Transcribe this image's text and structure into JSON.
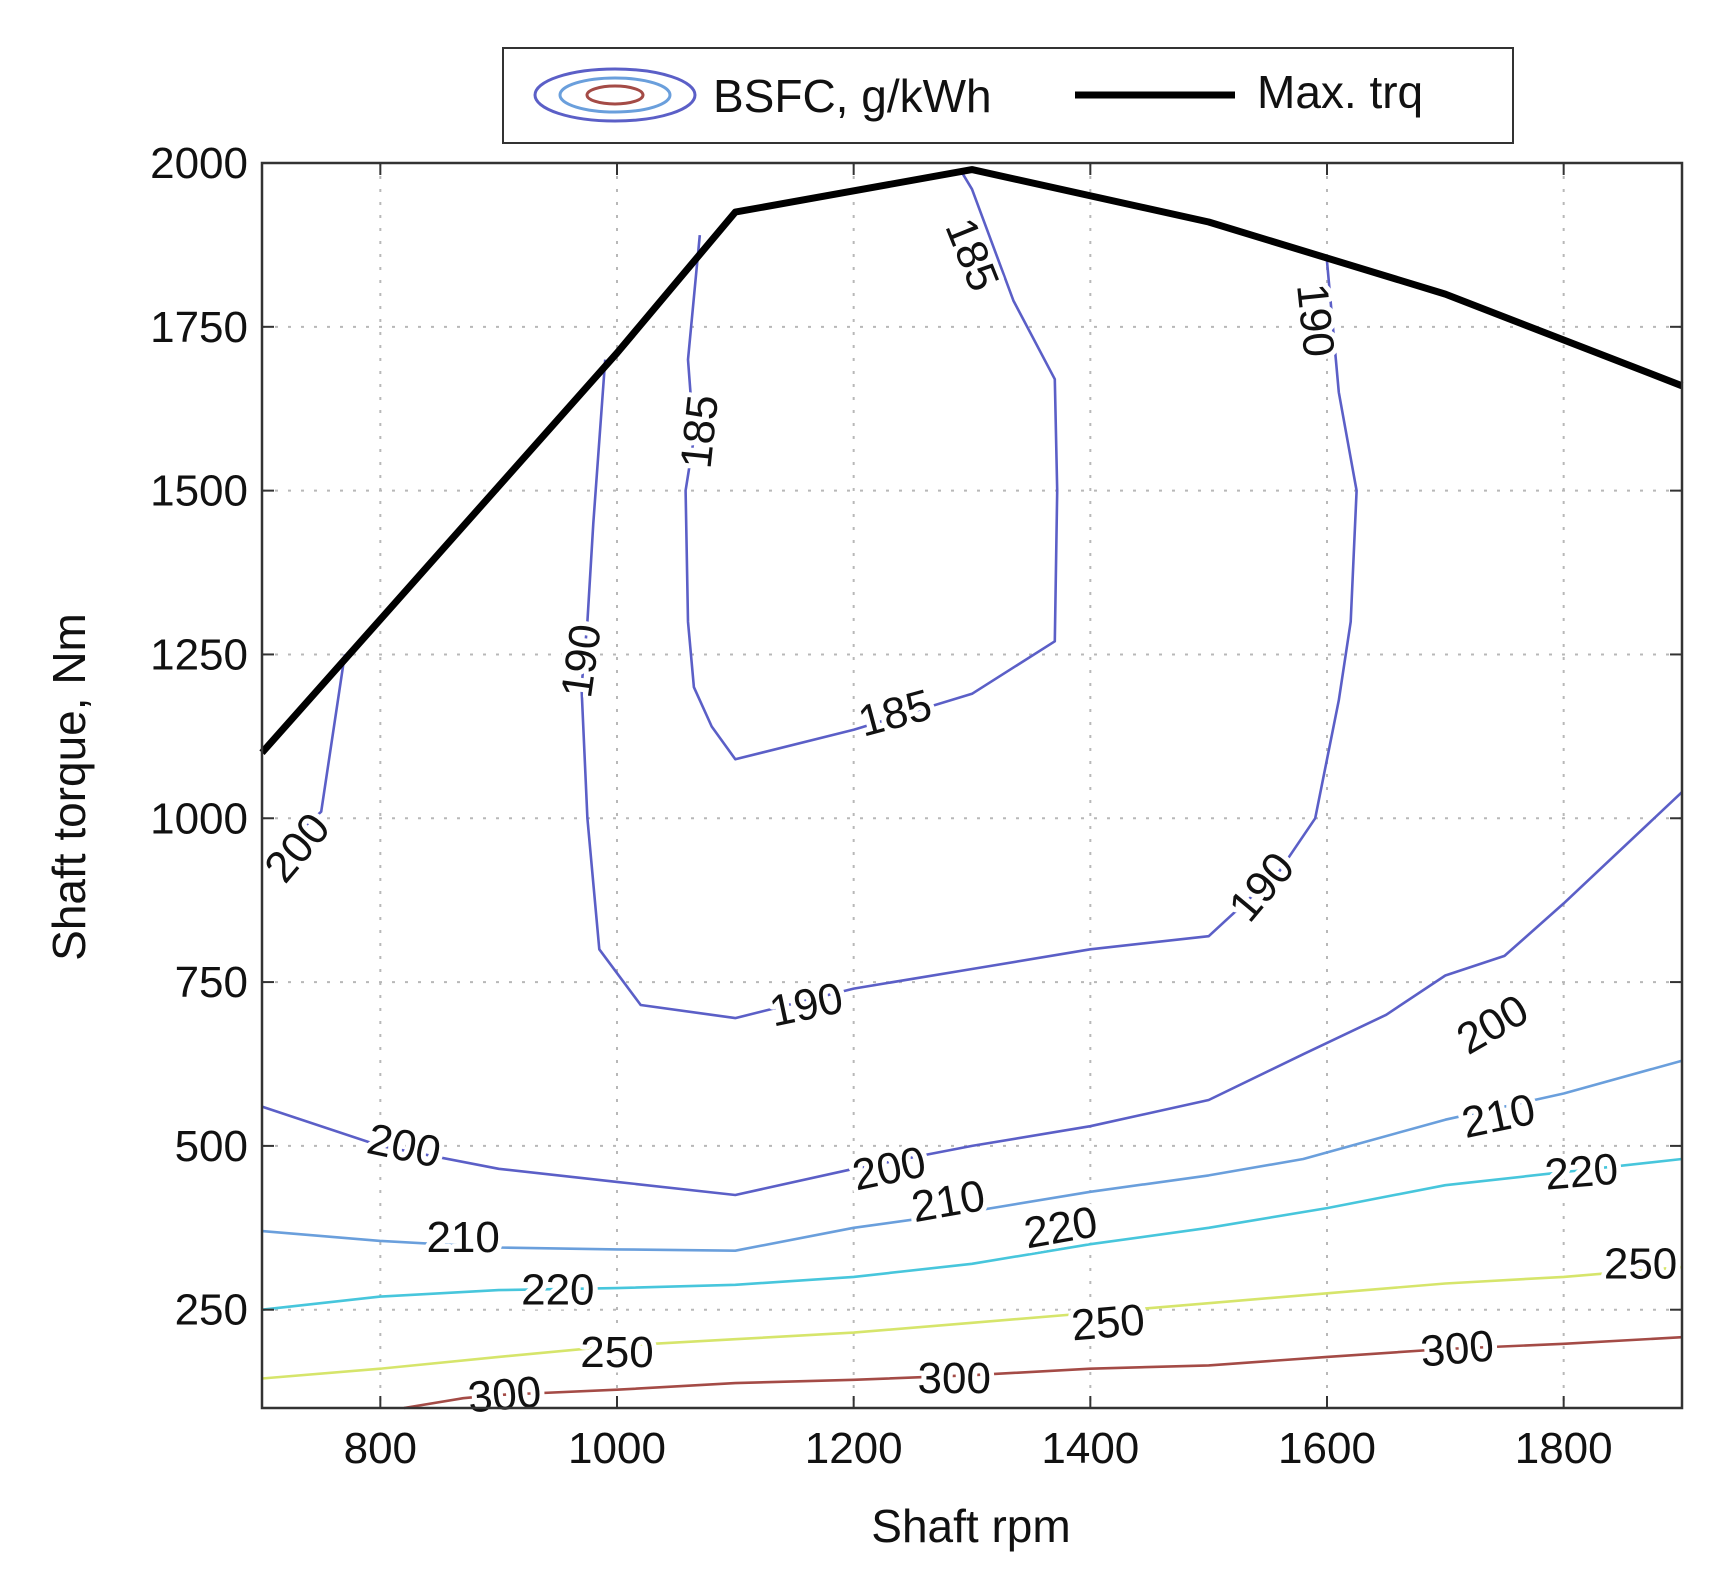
{
  "chart_data": {
    "type": "contour",
    "xlabel": "Shaft rpm",
    "ylabel": "Shaft torque, Nm",
    "xlim": [
      700,
      1900
    ],
    "ylim": [
      100,
      2000
    ],
    "xticks": [
      800,
      1000,
      1200,
      1400,
      1600,
      1800
    ],
    "yticks": [
      250,
      500,
      750,
      1000,
      1250,
      1500,
      1750,
      2000
    ],
    "grid": true,
    "legend": {
      "placement": "top-center",
      "entries": [
        {
          "label": "BSFC, g/kWh",
          "kind": "contour-icon"
        },
        {
          "label": "Max. trq",
          "kind": "line"
        }
      ]
    },
    "max_torque": {
      "name": "Max. trq",
      "color": "#000000",
      "points": [
        [
          700,
          1100
        ],
        [
          1000,
          1710
        ],
        [
          1100,
          1925
        ],
        [
          1300,
          1990
        ],
        [
          1500,
          1910
        ],
        [
          1700,
          1800
        ],
        [
          1900,
          1660
        ]
      ]
    },
    "contours": [
      {
        "level": 185,
        "color": "#5b5fc7",
        "points": [
          [
            1070,
            1890
          ],
          [
            1060,
            1700
          ],
          [
            1065,
            1580
          ],
          [
            1058,
            1500
          ],
          [
            1060,
            1300
          ],
          [
            1065,
            1200
          ],
          [
            1080,
            1140
          ],
          [
            1100,
            1090
          ],
          [
            1200,
            1135
          ],
          [
            1300,
            1190
          ],
          [
            1370,
            1270
          ],
          [
            1372,
            1500
          ],
          [
            1370,
            1670
          ],
          [
            1335,
            1790
          ],
          [
            1300,
            1960
          ],
          [
            1290,
            1990
          ]
        ]
      },
      {
        "level": 185,
        "color": "#5b5fc7",
        "points": []
      },
      {
        "level": 190,
        "color": "#5b5fc7",
        "points": [
          [
            990,
            1700
          ],
          [
            980,
            1450
          ],
          [
            975,
            1300
          ],
          [
            970,
            1200
          ],
          [
            975,
            1000
          ],
          [
            985,
            800
          ],
          [
            1020,
            715
          ],
          [
            1100,
            695
          ],
          [
            1200,
            740
          ],
          [
            1300,
            770
          ],
          [
            1400,
            800
          ],
          [
            1500,
            820
          ],
          [
            1560,
            920
          ],
          [
            1590,
            1000
          ],
          [
            1610,
            1180
          ],
          [
            1620,
            1300
          ],
          [
            1625,
            1500
          ],
          [
            1610,
            1650
          ],
          [
            1600,
            1850
          ]
        ]
      },
      {
        "level": 200,
        "color": "#5b5fc7",
        "points": [
          [
            700,
            930
          ],
          [
            750,
            1010
          ],
          [
            770,
            1250
          ]
        ]
      },
      {
        "level": 200,
        "color": "#5b5fc7",
        "points": [
          [
            700,
            560
          ],
          [
            800,
            500
          ],
          [
            900,
            465
          ],
          [
            1000,
            445
          ],
          [
            1100,
            425
          ],
          [
            1200,
            465
          ],
          [
            1300,
            500
          ],
          [
            1400,
            530
          ],
          [
            1500,
            570
          ],
          [
            1580,
            640
          ],
          [
            1650,
            700
          ],
          [
            1700,
            760
          ],
          [
            1750,
            790
          ],
          [
            1800,
            870
          ],
          [
            1900,
            1040
          ]
        ]
      },
      {
        "level": 210,
        "color": "#6a9fdc",
        "points": [
          [
            700,
            370
          ],
          [
            800,
            355
          ],
          [
            900,
            345
          ],
          [
            1000,
            342
          ],
          [
            1100,
            340
          ],
          [
            1200,
            375
          ],
          [
            1300,
            400
          ],
          [
            1400,
            430
          ],
          [
            1500,
            455
          ],
          [
            1580,
            480
          ],
          [
            1700,
            540
          ],
          [
            1800,
            580
          ],
          [
            1900,
            630
          ]
        ]
      },
      {
        "level": 220,
        "color": "#47c6dc",
        "points": [
          [
            700,
            250
          ],
          [
            800,
            270
          ],
          [
            900,
            280
          ],
          [
            1000,
            283
          ],
          [
            1100,
            288
          ],
          [
            1200,
            300
          ],
          [
            1300,
            320
          ],
          [
            1400,
            350
          ],
          [
            1500,
            375
          ],
          [
            1600,
            405
          ],
          [
            1700,
            440
          ],
          [
            1800,
            460
          ],
          [
            1900,
            480
          ]
        ]
      },
      {
        "level": 250,
        "color": "#d6e56b",
        "points": [
          [
            700,
            145
          ],
          [
            800,
            160
          ],
          [
            900,
            178
          ],
          [
            1000,
            195
          ],
          [
            1100,
            205
          ],
          [
            1200,
            215
          ],
          [
            1300,
            230
          ],
          [
            1400,
            245
          ],
          [
            1500,
            260
          ],
          [
            1600,
            275
          ],
          [
            1700,
            290
          ],
          [
            1800,
            300
          ],
          [
            1900,
            315
          ]
        ]
      },
      {
        "level": 300,
        "color": "#a44b46",
        "points": [
          [
            820,
            100
          ],
          [
            870,
            115
          ],
          [
            900,
            120
          ],
          [
            1000,
            128
          ],
          [
            1100,
            138
          ],
          [
            1200,
            143
          ],
          [
            1300,
            150
          ],
          [
            1400,
            160
          ],
          [
            1500,
            165
          ],
          [
            1600,
            178
          ],
          [
            1700,
            190
          ],
          [
            1800,
            198
          ],
          [
            1900,
            208
          ]
        ]
      }
    ],
    "contour_labels": [
      {
        "text": "185",
        "x": 1300,
        "y": 1860,
        "angle": 68
      },
      {
        "text": "185",
        "x": 1070,
        "y": 1590,
        "angle": -84
      },
      {
        "text": "185",
        "x": 1235,
        "y": 1160,
        "angle": -15
      },
      {
        "text": "190",
        "x": 1590,
        "y": 1760,
        "angle": 84
      },
      {
        "text": "190",
        "x": 970,
        "y": 1240,
        "angle": -82
      },
      {
        "text": "190",
        "x": 1545,
        "y": 895,
        "angle": -50
      },
      {
        "text": "190",
        "x": 1160,
        "y": 715,
        "angle": -12
      },
      {
        "text": "200",
        "x": 730,
        "y": 955,
        "angle": -50
      },
      {
        "text": "200",
        "x": 1740,
        "y": 685,
        "angle": -30
      },
      {
        "text": "200",
        "x": 820,
        "y": 500,
        "angle": 12
      },
      {
        "text": "200",
        "x": 1230,
        "y": 465,
        "angle": -12
      },
      {
        "text": "210",
        "x": 1745,
        "y": 545,
        "angle": -12
      },
      {
        "text": "210",
        "x": 1280,
        "y": 415,
        "angle": -10
      },
      {
        "text": "210",
        "x": 870,
        "y": 360,
        "angle": 0
      },
      {
        "text": "220",
        "x": 1815,
        "y": 460,
        "angle": -5
      },
      {
        "text": "220",
        "x": 1375,
        "y": 375,
        "angle": -10
      },
      {
        "text": "220",
        "x": 950,
        "y": 280,
        "angle": 0
      },
      {
        "text": "250",
        "x": 1865,
        "y": 320,
        "angle": 0
      },
      {
        "text": "250",
        "x": 1415,
        "y": 230,
        "angle": -5
      },
      {
        "text": "250",
        "x": 1000,
        "y": 185,
        "angle": 0
      },
      {
        "text": "300",
        "x": 1710,
        "y": 190,
        "angle": -5
      },
      {
        "text": "300",
        "x": 1285,
        "y": 145,
        "angle": 0
      },
      {
        "text": "300",
        "x": 905,
        "y": 120,
        "angle": -5
      }
    ]
  }
}
